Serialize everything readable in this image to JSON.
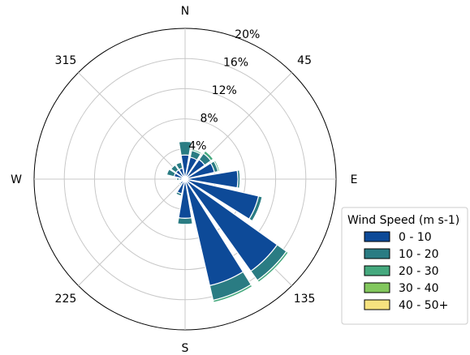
{
  "chart_data": {
    "type": "windrose",
    "directions": [
      "N",
      "NNE",
      "NE",
      "ENE",
      "E",
      "ESE",
      "SE",
      "SSE",
      "S",
      "SSW",
      "SW",
      "WSW",
      "W",
      "WNW",
      "NW",
      "NNW"
    ],
    "direction_degrees": [
      0,
      22.5,
      45,
      67.5,
      90,
      112.5,
      135,
      157.5,
      180,
      202.5,
      225,
      247.5,
      270,
      292.5,
      315,
      337.5
    ],
    "angle_labels": [
      {
        "deg": 0,
        "text": "N"
      },
      {
        "deg": 45,
        "text": "45"
      },
      {
        "deg": 90,
        "text": "E"
      },
      {
        "deg": 135,
        "text": "135"
      },
      {
        "deg": 180,
        "text": "S"
      },
      {
        "deg": 225,
        "text": "225"
      },
      {
        "deg": 270,
        "text": "W"
      },
      {
        "deg": 315,
        "text": "315"
      }
    ],
    "radial_ticks": [
      4,
      8,
      12,
      16,
      20
    ],
    "radial_tick_labels": [
      "4%",
      "8%",
      "12%",
      "16%",
      "20%"
    ],
    "rmax": 20,
    "legend": {
      "title": "Wind Speed (m s-1)",
      "position": "right",
      "entries": [
        {
          "label": "0 - 10",
          "color": "#0d4a98"
        },
        {
          "label": "10 - 20",
          "color": "#2a7c83"
        },
        {
          "label": "20 - 30",
          "color": "#45a97e"
        },
        {
          "label": "30 - 40",
          "color": "#82c75d"
        },
        {
          "label": "40 - 50+",
          "color": "#f6e27f"
        }
      ]
    },
    "series": [
      {
        "name": "0 - 10",
        "values": [
          3.2,
          3.0,
          3.2,
          4.0,
          7.0,
          10.0,
          15.0,
          14.5,
          5.2,
          2.0,
          0.8,
          0.5,
          0.8,
          1.5,
          1.5,
          1.5
        ]
      },
      {
        "name": "10 - 20",
        "values": [
          1.8,
          0.9,
          1.0,
          0.5,
          0.3,
          0.5,
          1.5,
          2.0,
          0.8,
          0.3,
          0.2,
          0.1,
          0.3,
          1.0,
          0.8,
          0.8
        ]
      },
      {
        "name": "20 - 30",
        "values": [
          0,
          0.2,
          0.4,
          0.2,
          0.1,
          0.1,
          0.3,
          0.3,
          0,
          0,
          0,
          0,
          0,
          0,
          0,
          0
        ]
      },
      {
        "name": "30 - 40",
        "values": [
          0,
          0,
          0,
          0,
          0,
          0,
          0,
          0,
          0,
          0,
          0,
          0,
          0,
          0,
          0,
          0
        ]
      },
      {
        "name": "40 - 50+",
        "values": [
          0,
          0,
          0,
          0,
          0,
          0,
          0,
          0,
          0,
          0,
          0,
          0,
          0,
          0,
          0,
          0
        ]
      }
    ],
    "grid": true
  }
}
